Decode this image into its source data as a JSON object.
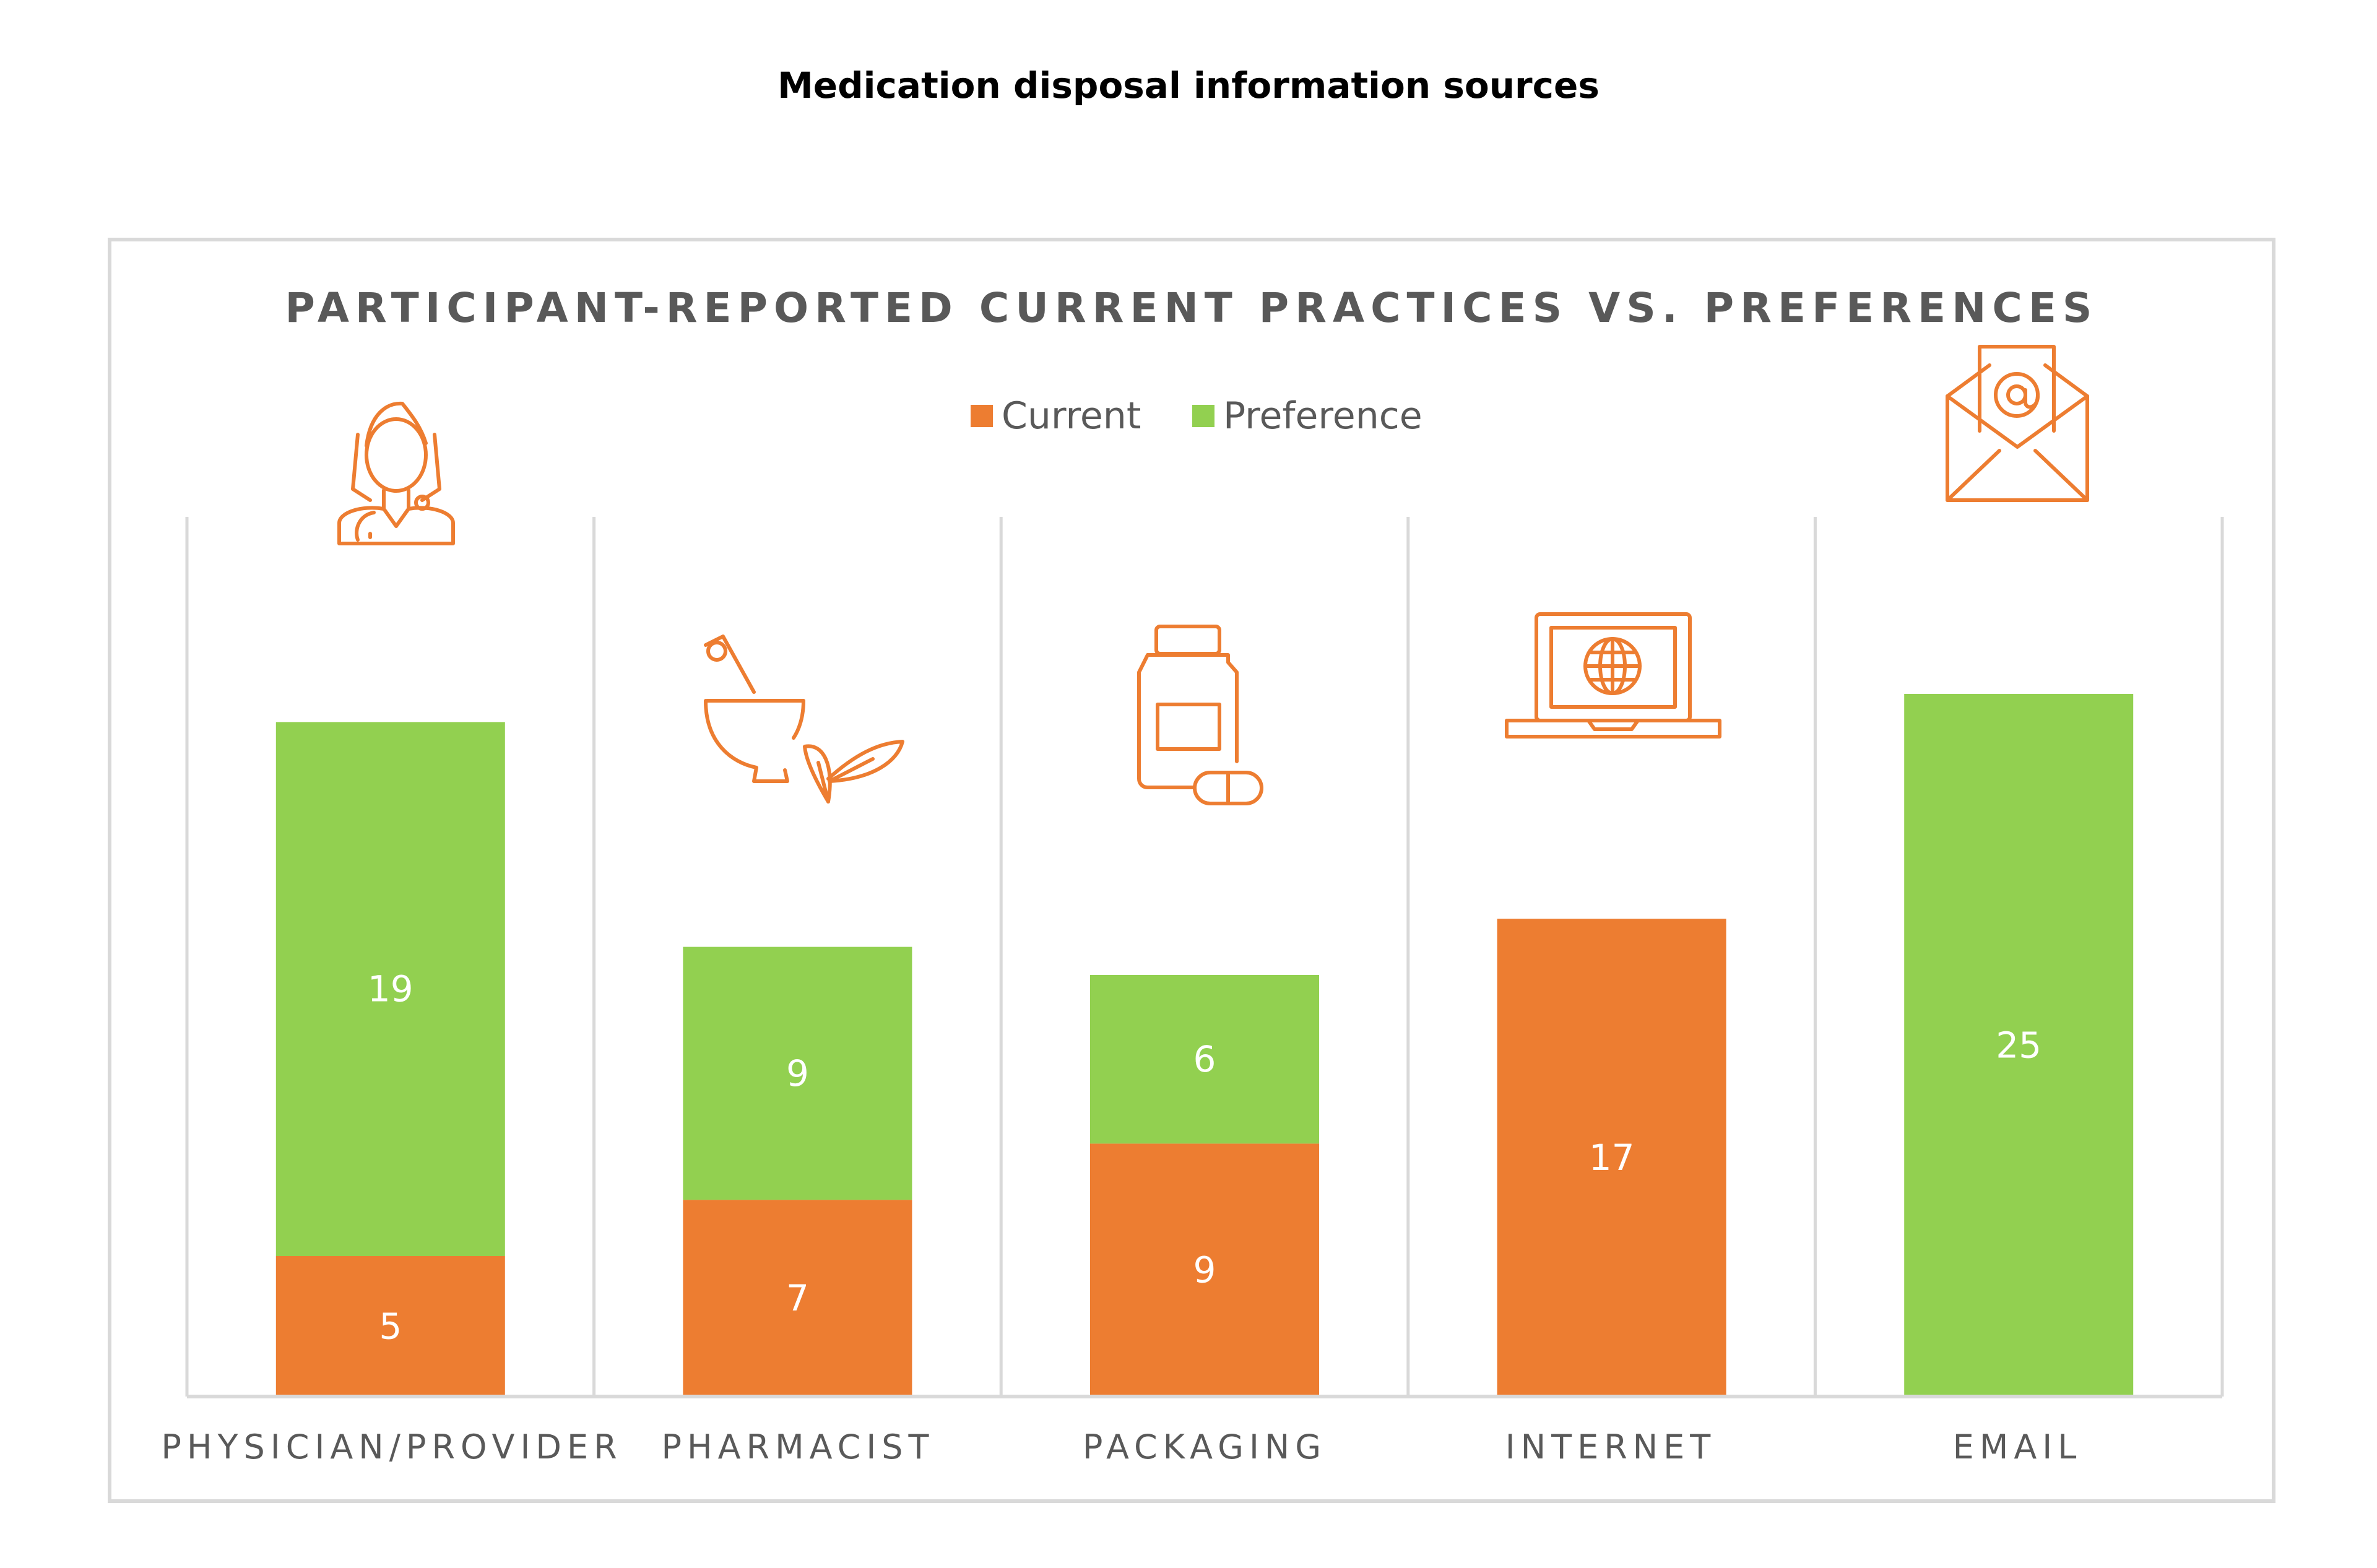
{
  "figure_title": "Medication disposal information sources",
  "colors": {
    "current": "#ED7D31",
    "preference": "#92D050",
    "axis": "#D9D9D9",
    "frame": "#D9D9D9"
  },
  "chart_data": {
    "type": "bar",
    "stacked": true,
    "title": "PARTICIPANT-REPORTED CURRENT PRACTICES VS. PREFERENCES",
    "categories": [
      "PHYSICIAN/PROVIDER",
      "PHARMACIST",
      "PACKAGING",
      "INTERNET",
      "EMAIL"
    ],
    "series": [
      {
        "name": "Current",
        "values": [
          5,
          7,
          9,
          17,
          0
        ],
        "color": "#ED7D31"
      },
      {
        "name": "Preference",
        "values": [
          19,
          9,
          6,
          0,
          25
        ],
        "color": "#92D050"
      }
    ],
    "category_icons": [
      "doctor-icon",
      "mortar-pestle-icon",
      "medicine-bottle-icon",
      "laptop-globe-icon",
      "email-envelope-icon"
    ],
    "ylim": [
      0,
      31.3
    ],
    "legend_position": "top",
    "grid": false
  }
}
